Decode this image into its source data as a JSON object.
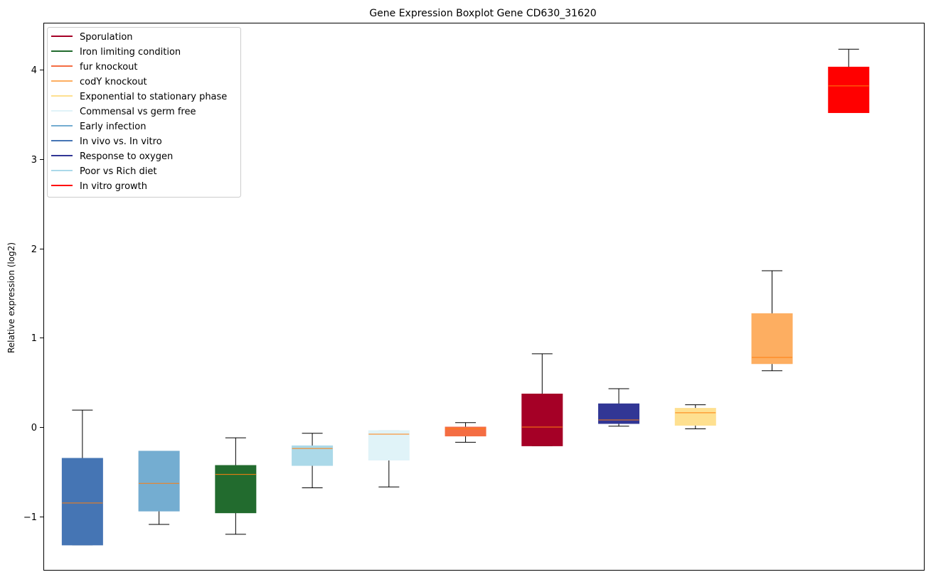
{
  "chart_data": {
    "type": "box",
    "title": "Gene Expression Boxplot Gene CD630_31620",
    "xlabel": "",
    "ylabel": "Relative expression (log2)",
    "ylim": [
      -1.6,
      4.5
    ],
    "yticks": [
      -1,
      0,
      1,
      2,
      3,
      4
    ],
    "grid": false,
    "legend_position": "top-left",
    "legend": [
      {
        "label": "Sporulation",
        "color": "#a50026"
      },
      {
        "label": "Iron limiting condition",
        "color": "#226b2e"
      },
      {
        "label": "fur knockout",
        "color": "#f46d43"
      },
      {
        "label": "codY knockout",
        "color": "#fdae61"
      },
      {
        "label": "Exponential to stationary phase",
        "color": "#fee090"
      },
      {
        "label": "Commensal vs germ free",
        "color": "#e0f3f8"
      },
      {
        "label": "Early infection",
        "color": "#74add1"
      },
      {
        "label": "In vivo vs. In vitro",
        "color": "#4575b4"
      },
      {
        "label": "Response to oxygen",
        "color": "#313695"
      },
      {
        "label": "Poor vs Rich diet",
        "color": "#abd9e9"
      },
      {
        "label": "In vitro growth",
        "color": "#ff0000"
      }
    ],
    "boxes": [
      {
        "group": "In vivo vs. In vitro",
        "color": "#4575b4",
        "whisker_low": -1.32,
        "q1": -1.32,
        "median": -0.85,
        "q3": -0.35,
        "whisker_high": 0.19
      },
      {
        "group": "Early infection",
        "color": "#74add1",
        "whisker_low": -1.09,
        "q1": -0.94,
        "median": -0.63,
        "q3": -0.27,
        "whisker_high": -0.27
      },
      {
        "group": "Iron limiting condition",
        "color": "#226b2e",
        "whisker_low": -1.2,
        "q1": -0.96,
        "median": -0.53,
        "q3": -0.43,
        "whisker_high": -0.12
      },
      {
        "group": "Poor vs Rich diet",
        "color": "#abd9e9",
        "whisker_low": -0.68,
        "q1": -0.43,
        "median": -0.24,
        "q3": -0.21,
        "whisker_high": -0.07
      },
      {
        "group": "Commensal vs germ free",
        "color": "#e0f3f8",
        "whisker_low": -0.67,
        "q1": -0.37,
        "median": -0.08,
        "q3": -0.04,
        "whisker_high": -0.04
      },
      {
        "group": "fur knockout",
        "color": "#f46d43",
        "whisker_low": -0.17,
        "q1": -0.1,
        "median": -0.02,
        "q3": 0.0,
        "whisker_high": 0.05
      },
      {
        "group": "Sporulation",
        "color": "#a50026",
        "whisker_low": -0.21,
        "q1": -0.21,
        "median": 0.0,
        "q3": 0.37,
        "whisker_high": 0.82
      },
      {
        "group": "Response to oxygen",
        "color": "#313695",
        "whisker_low": 0.01,
        "q1": 0.04,
        "median": 0.08,
        "q3": 0.26,
        "whisker_high": 0.43
      },
      {
        "group": "Exponential to stationary phase",
        "color": "#fee090",
        "whisker_low": -0.02,
        "q1": 0.02,
        "median": 0.16,
        "q3": 0.21,
        "whisker_high": 0.25
      },
      {
        "group": "codY knockout",
        "color": "#fdae61",
        "whisker_low": 0.63,
        "q1": 0.71,
        "median": 0.78,
        "q3": 1.27,
        "whisker_high": 1.75
      },
      {
        "group": "In vitro growth",
        "color": "#ff0000",
        "whisker_low": 3.52,
        "q1": 3.52,
        "median": 3.82,
        "q3": 4.03,
        "whisker_high": 4.23
      }
    ]
  }
}
